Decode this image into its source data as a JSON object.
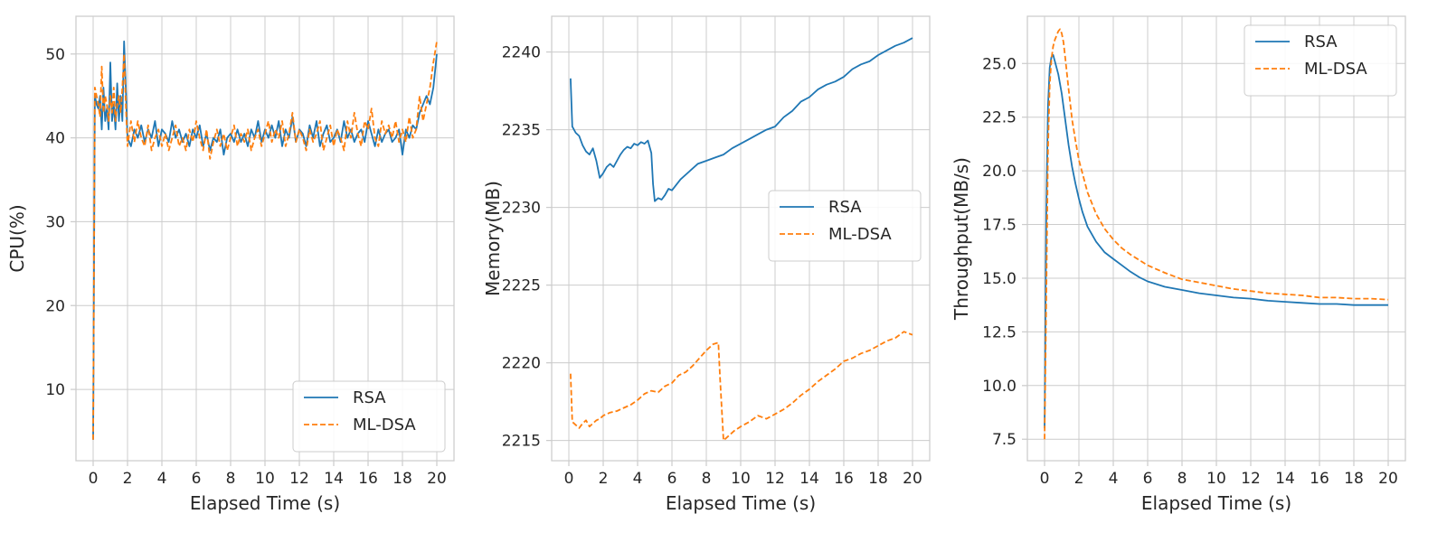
{
  "colors": {
    "rsa": "#1f77b4",
    "mldsa": "#ff7f0e"
  },
  "chart_data": [
    {
      "type": "line",
      "title": "",
      "xlabel": "Elapsed Time (s)",
      "ylabel": "CPU(%)",
      "xlim": [
        -1,
        21
      ],
      "ylim": [
        1.5,
        54.5
      ],
      "xticks": [
        0,
        2,
        4,
        6,
        8,
        10,
        12,
        14,
        16,
        18,
        20
      ],
      "yticks": [
        10,
        20,
        30,
        40,
        50
      ],
      "ytick_format": 0,
      "grid": true,
      "legend": "lower right",
      "series": [
        {
          "name": "RSA",
          "style": "solid",
          "x": [
            0,
            0.1,
            0.2,
            0.3,
            0.4,
            0.5,
            0.6,
            0.7,
            0.8,
            0.9,
            1.0,
            1.1,
            1.2,
            1.3,
            1.4,
            1.5,
            1.6,
            1.7,
            1.8,
            1.9,
            2.0,
            2.2,
            2.4,
            2.6,
            2.8,
            3.0,
            3.2,
            3.4,
            3.6,
            3.8,
            4.0,
            4.2,
            4.4,
            4.6,
            4.8,
            5.0,
            5.2,
            5.4,
            5.6,
            5.8,
            6.0,
            6.2,
            6.4,
            6.6,
            6.8,
            7.0,
            7.2,
            7.4,
            7.6,
            7.8,
            8.0,
            8.2,
            8.4,
            8.6,
            8.8,
            9.0,
            9.2,
            9.4,
            9.6,
            9.8,
            10.0,
            10.2,
            10.4,
            10.6,
            10.8,
            11.0,
            11.2,
            11.4,
            11.6,
            11.8,
            12.0,
            12.2,
            12.4,
            12.6,
            12.8,
            13.0,
            13.2,
            13.4,
            13.6,
            13.8,
            14.0,
            14.2,
            14.4,
            14.6,
            14.8,
            15.0,
            15.2,
            15.4,
            15.6,
            15.8,
            16.0,
            16.2,
            16.4,
            16.6,
            16.8,
            17.0,
            17.2,
            17.4,
            17.6,
            17.8,
            18.0,
            18.2,
            18.4,
            18.6,
            18.8,
            19.0,
            19.2,
            19.4,
            19.6,
            19.8,
            20.0
          ],
          "y": [
            4,
            45,
            44,
            43.5,
            45,
            41,
            46,
            42,
            43.5,
            41,
            49,
            42,
            44,
            41,
            46.5,
            42,
            45,
            42,
            51.5,
            46,
            40,
            39,
            41,
            40,
            41.5,
            39.5,
            41,
            40,
            42,
            39,
            41,
            40.5,
            39.5,
            42,
            40,
            41,
            39.5,
            40.5,
            39,
            41,
            40,
            41.5,
            39,
            40.5,
            38.5,
            40,
            39.5,
            41,
            38,
            40,
            40.5,
            39.5,
            41,
            39.5,
            40.5,
            39,
            41,
            40,
            42,
            39.5,
            41,
            40,
            41.5,
            40,
            42,
            39,
            41,
            40,
            42.5,
            39.5,
            41,
            40.5,
            39,
            41.5,
            40,
            42,
            39,
            40.5,
            41.5,
            39.5,
            40,
            41,
            39.5,
            42,
            40,
            41,
            39.5,
            40.5,
            41,
            39.5,
            42,
            40.5,
            39,
            41,
            39.5,
            40.5,
            41,
            39.5,
            40,
            41,
            38,
            41,
            40,
            41.5,
            41,
            43,
            44,
            45,
            44,
            46,
            50
          ]
        },
        {
          "name": "ML-DSA",
          "style": "dashed",
          "x": [
            0,
            0.1,
            0.2,
            0.3,
            0.4,
            0.5,
            0.6,
            0.7,
            0.8,
            0.9,
            1.0,
            1.1,
            1.2,
            1.3,
            1.4,
            1.5,
            1.6,
            1.7,
            1.8,
            1.9,
            2.0,
            2.2,
            2.4,
            2.6,
            2.8,
            3.0,
            3.2,
            3.4,
            3.6,
            3.8,
            4.0,
            4.2,
            4.4,
            4.6,
            4.8,
            5.0,
            5.2,
            5.4,
            5.6,
            5.8,
            6.0,
            6.2,
            6.4,
            6.6,
            6.8,
            7.0,
            7.2,
            7.4,
            7.6,
            7.8,
            8.0,
            8.2,
            8.4,
            8.6,
            8.8,
            9.0,
            9.2,
            9.4,
            9.6,
            9.8,
            10.0,
            10.2,
            10.4,
            10.6,
            10.8,
            11.0,
            11.2,
            11.4,
            11.6,
            11.8,
            12.0,
            12.2,
            12.4,
            12.6,
            12.8,
            13.0,
            13.2,
            13.4,
            13.6,
            13.8,
            14.0,
            14.2,
            14.4,
            14.6,
            14.8,
            15.0,
            15.2,
            15.4,
            15.6,
            15.8,
            16.0,
            16.2,
            16.4,
            16.6,
            16.8,
            17.0,
            17.2,
            17.4,
            17.6,
            17.8,
            18.0,
            18.2,
            18.4,
            18.6,
            18.8,
            19.0,
            19.2,
            19.4,
            19.6,
            19.8,
            20.0
          ],
          "y": [
            4,
            46,
            45,
            44,
            42.5,
            48.5,
            43,
            45,
            44,
            42,
            45,
            43,
            46,
            42,
            44,
            45,
            43,
            46,
            50,
            44,
            39,
            42,
            39.5,
            42,
            40,
            39,
            41.5,
            38.5,
            40,
            41,
            39,
            40.5,
            38.5,
            40,
            41.5,
            39,
            40,
            38.5,
            41,
            39.5,
            42,
            40,
            38.5,
            41,
            37.5,
            39.5,
            41,
            39,
            40.5,
            38.5,
            40,
            41.5,
            39,
            40.5,
            39.5,
            41,
            38.5,
            40,
            41,
            39,
            40.5,
            42,
            39.5,
            41,
            40,
            42,
            39,
            40.5,
            43,
            39.5,
            41,
            40,
            38.5,
            41,
            39.5,
            40.5,
            42,
            38.5,
            40,
            41.5,
            39,
            41,
            40,
            38.5,
            42,
            40,
            43,
            40.5,
            39,
            42,
            41,
            43.5,
            40,
            39,
            42,
            40.5,
            41.5,
            40,
            42,
            39.5,
            41,
            39.5,
            42.5,
            40,
            41,
            45,
            42,
            44,
            46,
            49,
            51.5
          ]
        }
      ]
    },
    {
      "type": "line",
      "title": "",
      "xlabel": "Elapsed Time (s)",
      "ylabel": "Memory(MB)",
      "xlim": [
        -1,
        21
      ],
      "ylim": [
        2213.7,
        2242.3
      ],
      "xticks": [
        0,
        2,
        4,
        6,
        8,
        10,
        12,
        14,
        16,
        18,
        20
      ],
      "yticks": [
        2215,
        2220,
        2225,
        2230,
        2235,
        2240
      ],
      "ytick_format": 0,
      "grid": true,
      "legend": "center right",
      "series": [
        {
          "name": "RSA",
          "style": "solid",
          "x": [
            0.1,
            0.2,
            0.4,
            0.6,
            0.8,
            1.0,
            1.2,
            1.4,
            1.6,
            1.8,
            2.0,
            2.2,
            2.4,
            2.6,
            2.8,
            3.0,
            3.2,
            3.4,
            3.6,
            3.8,
            4.0,
            4.2,
            4.4,
            4.6,
            4.8,
            4.9,
            5.0,
            5.2,
            5.4,
            5.6,
            5.8,
            6.0,
            6.5,
            7.0,
            7.5,
            8.0,
            8.5,
            9.0,
            9.5,
            10.0,
            10.5,
            11.0,
            11.5,
            12.0,
            12.5,
            13.0,
            13.5,
            14.0,
            14.5,
            15.0,
            15.5,
            16.0,
            16.5,
            17.0,
            17.5,
            18.0,
            18.5,
            19.0,
            19.5,
            20.0
          ],
          "y": [
            2238.3,
            2235.2,
            2234.8,
            2234.6,
            2234.0,
            2233.6,
            2233.4,
            2233.8,
            2233.0,
            2231.9,
            2232.2,
            2232.6,
            2232.8,
            2232.6,
            2233.0,
            2233.4,
            2233.7,
            2233.9,
            2233.8,
            2234.1,
            2234.0,
            2234.2,
            2234.1,
            2234.3,
            2233.5,
            2231.5,
            2230.4,
            2230.6,
            2230.5,
            2230.8,
            2231.2,
            2231.1,
            2231.8,
            2232.3,
            2232.8,
            2233.0,
            2233.2,
            2233.4,
            2233.8,
            2234.1,
            2234.4,
            2234.7,
            2235.0,
            2235.2,
            2235.8,
            2236.2,
            2236.8,
            2237.1,
            2237.6,
            2237.9,
            2238.1,
            2238.4,
            2238.9,
            2239.2,
            2239.4,
            2239.8,
            2240.1,
            2240.4,
            2240.6,
            2240.9
          ]
        },
        {
          "name": "ML-DSA",
          "style": "dashed",
          "x": [
            0.1,
            0.2,
            0.4,
            0.6,
            0.8,
            1.0,
            1.2,
            1.4,
            1.6,
            1.8,
            2.0,
            2.4,
            2.8,
            3.2,
            3.6,
            4.0,
            4.4,
            4.8,
            5.2,
            5.6,
            6.0,
            6.4,
            6.8,
            7.2,
            7.6,
            8.0,
            8.4,
            8.7,
            8.8,
            9.0,
            9.2,
            9.6,
            10.0,
            10.5,
            11.0,
            11.5,
            12.0,
            12.5,
            13.0,
            13.5,
            14.0,
            14.5,
            15.0,
            15.5,
            16.0,
            16.5,
            17.0,
            17.5,
            18.0,
            18.5,
            19.0,
            19.5,
            20.0
          ],
          "y": [
            2219.3,
            2216.2,
            2216.0,
            2215.8,
            2216.1,
            2216.3,
            2215.9,
            2216.1,
            2216.3,
            2216.4,
            2216.6,
            2216.8,
            2216.9,
            2217.1,
            2217.3,
            2217.6,
            2218.0,
            2218.2,
            2218.1,
            2218.5,
            2218.7,
            2219.2,
            2219.4,
            2219.8,
            2220.3,
            2220.8,
            2221.2,
            2221.3,
            2219.0,
            2215.0,
            2215.2,
            2215.6,
            2215.9,
            2216.2,
            2216.6,
            2216.4,
            2216.7,
            2217.0,
            2217.4,
            2217.9,
            2218.3,
            2218.8,
            2219.2,
            2219.6,
            2220.1,
            2220.3,
            2220.6,
            2220.8,
            2221.1,
            2221.4,
            2221.6,
            2222.0,
            2221.8
          ]
        }
      ]
    },
    {
      "type": "line",
      "title": "",
      "xlabel": "Elapsed Time (s)",
      "ylabel": "Throughput(MB/s)",
      "xlim": [
        -1,
        21
      ],
      "ylim": [
        6.5,
        27.2
      ],
      "xticks": [
        0,
        2,
        4,
        6,
        8,
        10,
        12,
        14,
        16,
        18,
        20
      ],
      "yticks": [
        7.5,
        10.0,
        12.5,
        15.0,
        17.5,
        20.0,
        22.5,
        25.0
      ],
      "ytick_format": 1,
      "grid": true,
      "legend": "upper right",
      "series": [
        {
          "name": "RSA",
          "style": "solid",
          "x": [
            0,
            0.1,
            0.2,
            0.3,
            0.4,
            0.5,
            0.6,
            0.8,
            1.0,
            1.2,
            1.4,
            1.6,
            1.8,
            2.0,
            2.2,
            2.5,
            3.0,
            3.5,
            4.0,
            4.5,
            5.0,
            5.5,
            6.0,
            7.0,
            8.0,
            9.0,
            10.0,
            11.0,
            12.0,
            13.0,
            14.0,
            15.0,
            16.0,
            17.0,
            18.0,
            19.0,
            20.0
          ],
          "y": [
            8.0,
            18.0,
            23.0,
            24.8,
            25.3,
            25.4,
            25.1,
            24.5,
            23.6,
            22.4,
            21.2,
            20.2,
            19.4,
            18.7,
            18.1,
            17.4,
            16.7,
            16.2,
            15.9,
            15.6,
            15.3,
            15.05,
            14.85,
            14.6,
            14.45,
            14.3,
            14.2,
            14.1,
            14.05,
            13.95,
            13.9,
            13.85,
            13.8,
            13.8,
            13.75,
            13.75,
            13.75
          ]
        },
        {
          "name": "ML-DSA",
          "style": "dashed",
          "x": [
            0,
            0.1,
            0.2,
            0.3,
            0.4,
            0.5,
            0.6,
            0.7,
            0.8,
            0.9,
            1.0,
            1.1,
            1.2,
            1.4,
            1.6,
            1.8,
            2.0,
            2.5,
            3.0,
            3.5,
            4.0,
            4.5,
            5.0,
            6.0,
            7.0,
            8.0,
            9.0,
            10.0,
            11.0,
            12.0,
            13.0,
            14.0,
            15.0,
            16.0,
            17.0,
            18.0,
            19.0,
            20.0
          ],
          "y": [
            7.5,
            14.0,
            21.0,
            24.0,
            25.2,
            25.8,
            26.1,
            26.3,
            26.5,
            26.6,
            26.4,
            26.0,
            25.3,
            23.8,
            22.4,
            21.4,
            20.5,
            19.0,
            18.0,
            17.3,
            16.8,
            16.4,
            16.1,
            15.6,
            15.25,
            14.95,
            14.8,
            14.65,
            14.5,
            14.4,
            14.3,
            14.25,
            14.2,
            14.1,
            14.1,
            14.05,
            14.05,
            14.0
          ]
        }
      ]
    }
  ]
}
